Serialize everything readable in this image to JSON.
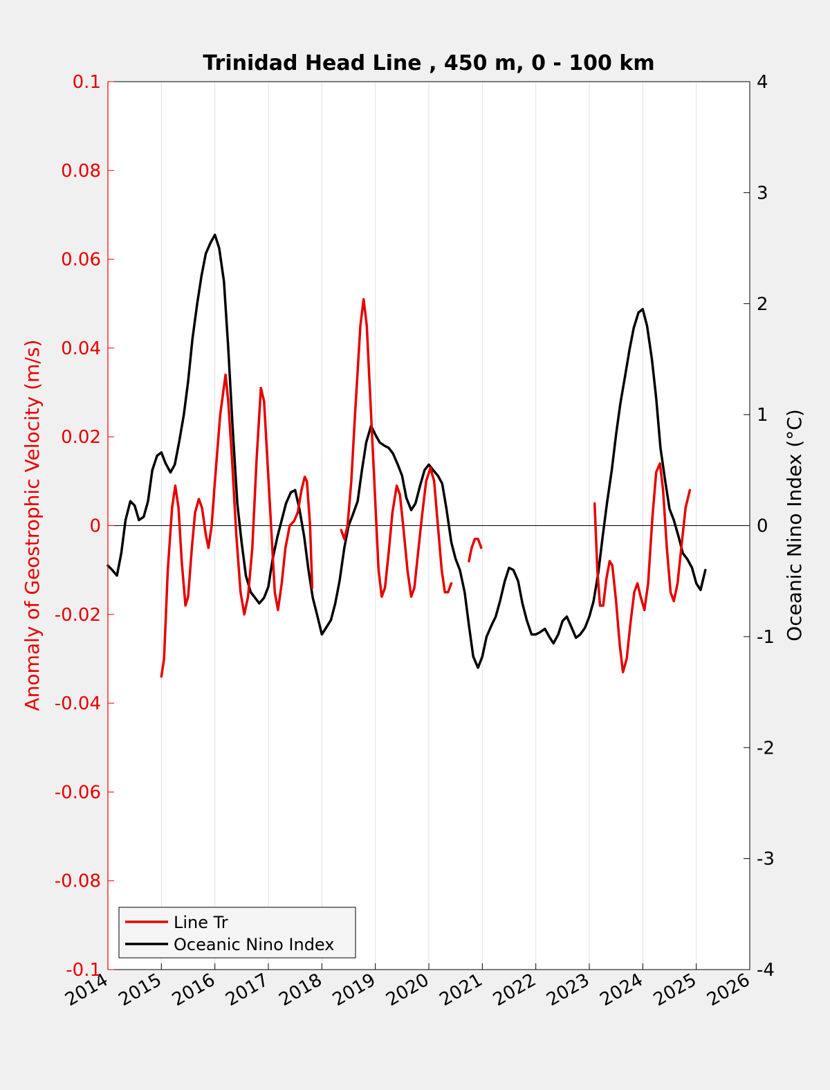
{
  "chart_data": {
    "type": "line",
    "title": "Trinidad Head Line , 450 m, 0 - 100 km",
    "xlabel": "",
    "ylabel_left": "Anomaly of Geostrophic Velocity (m/s)",
    "ylabel_right": "Oceanic Nino Index (°C)",
    "xlim": [
      2014,
      2026
    ],
    "ylim_left": [
      -0.1,
      0.1
    ],
    "ylim_right": [
      -4,
      4
    ],
    "x_ticks": [
      "2014",
      "2015",
      "2016",
      "2017",
      "2018",
      "2019",
      "2020",
      "2021",
      "2022",
      "2023",
      "2024",
      "2025",
      "2026"
    ],
    "y_left_ticks": [
      "0.1",
      "0.08",
      "0.06",
      "0.04",
      "0.02",
      "0",
      "-0.02",
      "-0.04",
      "-0.06",
      "-0.08",
      "-0.1"
    ],
    "y_right_ticks": [
      "4",
      "3",
      "2",
      "1",
      "0",
      "-1",
      "-2",
      "-3",
      "-4"
    ],
    "grid": "vertical",
    "legend_position": "bottom-left",
    "colors": {
      "left_axis": "#e60000",
      "right_axis": "#000000",
      "background": "#f0f0f0"
    },
    "series": [
      {
        "name": "Line Tr",
        "axis": "left",
        "color": "#e60000",
        "segments": [
          [
            [
              2015.0,
              -0.034
            ],
            [
              2015.05,
              -0.03
            ],
            [
              2015.12,
              -0.01
            ],
            [
              2015.2,
              0.004
            ],
            [
              2015.26,
              0.009
            ],
            [
              2015.32,
              0.004
            ],
            [
              2015.38,
              -0.008
            ],
            [
              2015.45,
              -0.018
            ],
            [
              2015.5,
              -0.016
            ],
            [
              2015.57,
              -0.005
            ],
            [
              2015.63,
              0.003
            ],
            [
              2015.7,
              0.006
            ],
            [
              2015.76,
              0.004
            ],
            [
              2015.83,
              -0.002
            ],
            [
              2015.88,
              -0.005
            ],
            [
              2015.94,
              0.0
            ],
            [
              2016.0,
              0.01
            ],
            [
              2016.1,
              0.025
            ],
            [
              2016.2,
              0.034
            ],
            [
              2016.25,
              0.028
            ],
            [
              2016.32,
              0.015
            ],
            [
              2016.4,
              -0.002
            ],
            [
              2016.48,
              -0.015
            ],
            [
              2016.55,
              -0.02
            ],
            [
              2016.62,
              -0.016
            ],
            [
              2016.7,
              -0.005
            ],
            [
              2016.78,
              0.015
            ],
            [
              2016.86,
              0.031
            ],
            [
              2016.92,
              0.028
            ],
            [
              2016.98,
              0.015
            ],
            [
              2017.05,
              0.0
            ],
            [
              2017.12,
              -0.015
            ],
            [
              2017.18,
              -0.019
            ],
            [
              2017.25,
              -0.013
            ],
            [
              2017.32,
              -0.005
            ],
            [
              2017.4,
              0.0
            ],
            [
              2017.48,
              0.001
            ],
            [
              2017.55,
              0.003
            ],
            [
              2017.62,
              0.008
            ],
            [
              2017.68,
              0.011
            ],
            [
              2017.72,
              0.01
            ],
            [
              2017.78,
              0.0
            ],
            [
              2017.82,
              -0.014
            ]
          ],
          [
            [
              2018.36,
              -0.001
            ],
            [
              2018.42,
              -0.003
            ],
            [
              2018.48,
              0.0
            ],
            [
              2018.55,
              0.01
            ],
            [
              2018.62,
              0.025
            ],
            [
              2018.72,
              0.045
            ],
            [
              2018.78,
              0.051
            ],
            [
              2018.84,
              0.045
            ],
            [
              2018.92,
              0.025
            ],
            [
              2019.0,
              0.005
            ],
            [
              2019.06,
              -0.01
            ],
            [
              2019.12,
              -0.016
            ],
            [
              2019.18,
              -0.014
            ],
            [
              2019.25,
              -0.006
            ],
            [
              2019.32,
              0.003
            ],
            [
              2019.4,
              0.009
            ],
            [
              2019.46,
              0.007
            ],
            [
              2019.52,
              0.0
            ],
            [
              2019.6,
              -0.01
            ],
            [
              2019.67,
              -0.016
            ],
            [
              2019.73,
              -0.014
            ],
            [
              2019.8,
              -0.006
            ],
            [
              2019.88,
              0.003
            ],
            [
              2019.95,
              0.01
            ],
            [
              2020.03,
              0.013
            ],
            [
              2020.1,
              0.01
            ],
            [
              2020.17,
              0.0
            ],
            [
              2020.24,
              -0.01
            ],
            [
              2020.3,
              -0.015
            ],
            [
              2020.36,
              -0.015
            ],
            [
              2020.42,
              -0.013
            ]
          ],
          [
            [
              2020.75,
              -0.008
            ],
            [
              2020.8,
              -0.005
            ],
            [
              2020.86,
              -0.003
            ],
            [
              2020.92,
              -0.003
            ],
            [
              2020.98,
              -0.005
            ]
          ],
          [
            [
              2023.1,
              0.005
            ],
            [
              2023.15,
              -0.01
            ],
            [
              2023.2,
              -0.018
            ],
            [
              2023.26,
              -0.018
            ],
            [
              2023.32,
              -0.012
            ],
            [
              2023.38,
              -0.008
            ],
            [
              2023.43,
              -0.009
            ],
            [
              2023.5,
              -0.017
            ],
            [
              2023.57,
              -0.027
            ],
            [
              2023.63,
              -0.033
            ],
            [
              2023.7,
              -0.03
            ],
            [
              2023.77,
              -0.022
            ],
            [
              2023.84,
              -0.015
            ],
            [
              2023.9,
              -0.013
            ],
            [
              2023.96,
              -0.016
            ],
            [
              2024.03,
              -0.019
            ],
            [
              2024.1,
              -0.013
            ],
            [
              2024.18,
              0.002
            ],
            [
              2024.25,
              0.012
            ],
            [
              2024.32,
              0.014
            ],
            [
              2024.38,
              0.008
            ],
            [
              2024.45,
              -0.005
            ],
            [
              2024.52,
              -0.015
            ],
            [
              2024.58,
              -0.017
            ],
            [
              2024.65,
              -0.013
            ],
            [
              2024.72,
              -0.005
            ],
            [
              2024.8,
              0.004
            ],
            [
              2024.88,
              0.008
            ]
          ]
        ]
      },
      {
        "name": "Oceanic Nino Index",
        "axis": "right",
        "color": "#000000",
        "segments": [
          [
            [
              2014.0,
              -0.36
            ],
            [
              2014.08,
              -0.4
            ],
            [
              2014.17,
              -0.45
            ],
            [
              2014.25,
              -0.25
            ],
            [
              2014.33,
              0.05
            ],
            [
              2014.42,
              0.22
            ],
            [
              2014.5,
              0.18
            ],
            [
              2014.58,
              0.05
            ],
            [
              2014.67,
              0.08
            ],
            [
              2014.75,
              0.22
            ],
            [
              2014.83,
              0.5
            ],
            [
              2014.92,
              0.63
            ],
            [
              2015.0,
              0.66
            ],
            [
              2015.08,
              0.56
            ],
            [
              2015.17,
              0.48
            ],
            [
              2015.25,
              0.55
            ],
            [
              2015.33,
              0.75
            ],
            [
              2015.42,
              1.0
            ],
            [
              2015.5,
              1.3
            ],
            [
              2015.58,
              1.68
            ],
            [
              2015.67,
              2.0
            ],
            [
              2015.75,
              2.25
            ],
            [
              2015.83,
              2.45
            ],
            [
              2015.92,
              2.55
            ],
            [
              2016.0,
              2.62
            ],
            [
              2016.08,
              2.5
            ],
            [
              2016.17,
              2.2
            ],
            [
              2016.25,
              1.6
            ],
            [
              2016.33,
              0.9
            ],
            [
              2016.42,
              0.2
            ],
            [
              2016.5,
              -0.15
            ],
            [
              2016.58,
              -0.45
            ],
            [
              2016.67,
              -0.6
            ],
            [
              2016.75,
              -0.65
            ],
            [
              2016.83,
              -0.7
            ],
            [
              2016.92,
              -0.65
            ],
            [
              2017.0,
              -0.55
            ],
            [
              2017.08,
              -0.3
            ],
            [
              2017.17,
              -0.1
            ],
            [
              2017.25,
              0.05
            ],
            [
              2017.33,
              0.2
            ],
            [
              2017.42,
              0.3
            ],
            [
              2017.5,
              0.32
            ],
            [
              2017.58,
              0.15
            ],
            [
              2017.67,
              -0.1
            ],
            [
              2017.75,
              -0.4
            ],
            [
              2017.83,
              -0.65
            ],
            [
              2017.92,
              -0.82
            ],
            [
              2018.0,
              -0.98
            ],
            [
              2018.08,
              -0.92
            ],
            [
              2018.17,
              -0.85
            ],
            [
              2018.25,
              -0.7
            ],
            [
              2018.33,
              -0.5
            ],
            [
              2018.42,
              -0.2
            ],
            [
              2018.5,
              0.0
            ],
            [
              2018.58,
              0.1
            ],
            [
              2018.67,
              0.22
            ],
            [
              2018.75,
              0.5
            ],
            [
              2018.83,
              0.75
            ],
            [
              2018.92,
              0.9
            ],
            [
              2019.0,
              0.82
            ],
            [
              2019.08,
              0.75
            ],
            [
              2019.17,
              0.72
            ],
            [
              2019.25,
              0.7
            ],
            [
              2019.33,
              0.65
            ],
            [
              2019.42,
              0.55
            ],
            [
              2019.5,
              0.45
            ],
            [
              2019.58,
              0.25
            ],
            [
              2019.67,
              0.14
            ],
            [
              2019.75,
              0.2
            ],
            [
              2019.83,
              0.35
            ],
            [
              2019.92,
              0.5
            ],
            [
              2020.0,
              0.55
            ],
            [
              2020.08,
              0.5
            ],
            [
              2020.17,
              0.45
            ],
            [
              2020.25,
              0.38
            ],
            [
              2020.33,
              0.15
            ],
            [
              2020.42,
              -0.15
            ],
            [
              2020.5,
              -0.3
            ],
            [
              2020.58,
              -0.4
            ],
            [
              2020.67,
              -0.6
            ],
            [
              2020.75,
              -0.9
            ],
            [
              2020.83,
              -1.18
            ],
            [
              2020.92,
              -1.28
            ],
            [
              2021.0,
              -1.18
            ],
            [
              2021.08,
              -1.0
            ],
            [
              2021.17,
              -0.9
            ],
            [
              2021.25,
              -0.82
            ],
            [
              2021.33,
              -0.68
            ],
            [
              2021.42,
              -0.5
            ],
            [
              2021.5,
              -0.38
            ],
            [
              2021.58,
              -0.4
            ],
            [
              2021.67,
              -0.5
            ],
            [
              2021.75,
              -0.7
            ],
            [
              2021.83,
              -0.85
            ],
            [
              2021.92,
              -0.98
            ],
            [
              2022.0,
              -0.98
            ],
            [
              2022.08,
              -0.96
            ],
            [
              2022.17,
              -0.93
            ],
            [
              2022.25,
              -1.0
            ],
            [
              2022.33,
              -1.06
            ],
            [
              2022.42,
              -0.98
            ],
            [
              2022.5,
              -0.86
            ],
            [
              2022.58,
              -0.82
            ],
            [
              2022.67,
              -0.92
            ],
            [
              2022.75,
              -1.01
            ],
            [
              2022.83,
              -0.98
            ],
            [
              2022.92,
              -0.92
            ],
            [
              2023.0,
              -0.82
            ],
            [
              2023.08,
              -0.68
            ],
            [
              2023.17,
              -0.42
            ],
            [
              2023.25,
              -0.1
            ],
            [
              2023.33,
              0.2
            ],
            [
              2023.42,
              0.5
            ],
            [
              2023.5,
              0.82
            ],
            [
              2023.58,
              1.1
            ],
            [
              2023.67,
              1.35
            ],
            [
              2023.75,
              1.58
            ],
            [
              2023.83,
              1.78
            ],
            [
              2023.92,
              1.92
            ],
            [
              2024.0,
              1.95
            ],
            [
              2024.08,
              1.8
            ],
            [
              2024.17,
              1.5
            ],
            [
              2024.25,
              1.15
            ],
            [
              2024.33,
              0.7
            ],
            [
              2024.42,
              0.4
            ],
            [
              2024.5,
              0.15
            ],
            [
              2024.58,
              0.05
            ],
            [
              2024.67,
              -0.1
            ],
            [
              2024.75,
              -0.25
            ],
            [
              2024.83,
              -0.3
            ],
            [
              2024.92,
              -0.38
            ],
            [
              2025.0,
              -0.52
            ],
            [
              2025.08,
              -0.58
            ],
            [
              2025.17,
              -0.4
            ]
          ]
        ]
      }
    ]
  },
  "legend": {
    "items": [
      {
        "label": "Line Tr",
        "color": "#e60000"
      },
      {
        "label": "Oceanic Nino Index",
        "color": "#000000"
      }
    ]
  }
}
